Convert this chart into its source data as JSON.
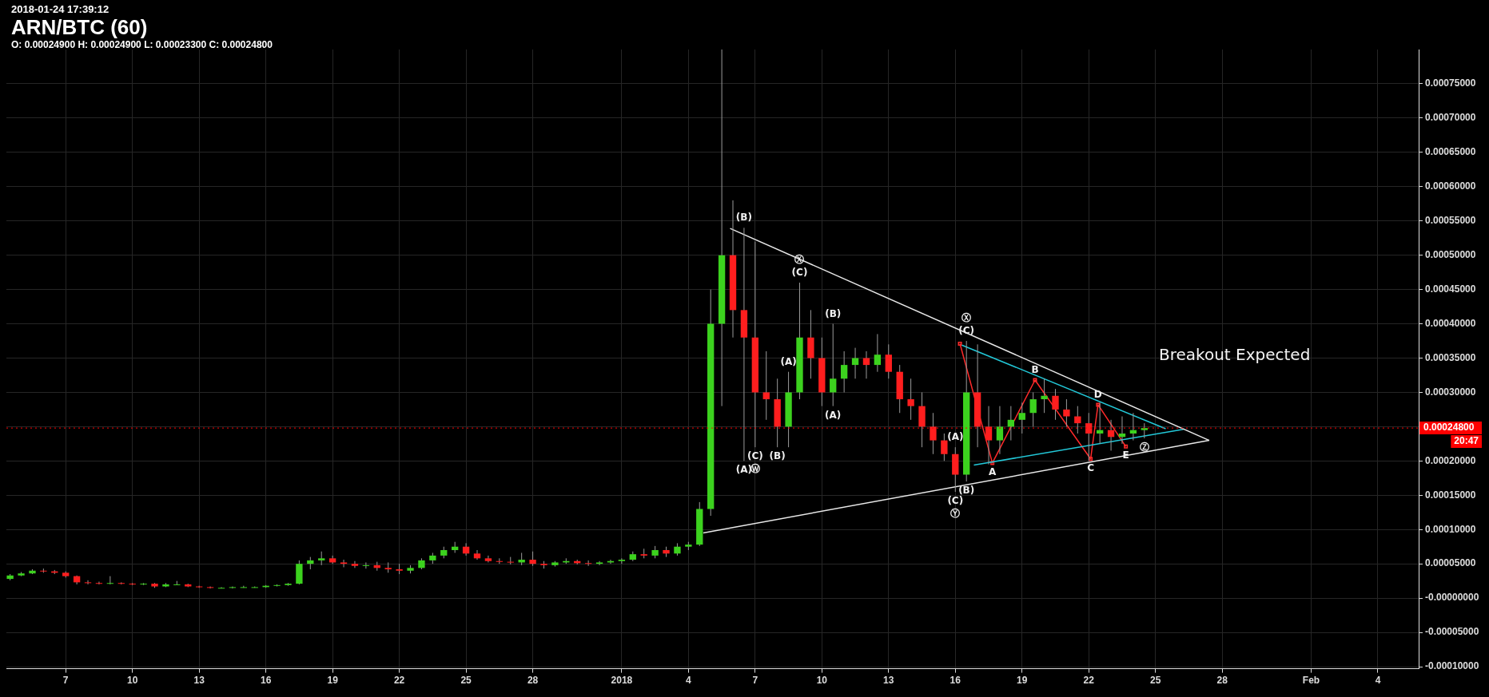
{
  "chart_data": {
    "type": "candlestick",
    "title": "ARN/BTC (60)",
    "subtitle": "2018-01-24 17:39:12",
    "x": [
      "2017-12-04T12:00",
      "2017-12-05T00:00",
      "2017-12-05T12:00",
      "2017-12-06T00:00",
      "2017-12-06T12:00",
      "2017-12-07T00:00",
      "2017-12-07T12:00",
      "2017-12-08T00:00",
      "2017-12-08T12:00",
      "2017-12-09T00:00",
      "2017-12-09T12:00",
      "2017-12-10T00:00",
      "2017-12-10T12:00",
      "2017-12-11T00:00",
      "2017-12-11T12:00",
      "2017-12-12T00:00",
      "2017-12-12T12:00",
      "2017-12-13T00:00",
      "2017-12-13T12:00",
      "2017-12-14T00:00",
      "2017-12-14T12:00",
      "2017-12-15T00:00",
      "2017-12-15T12:00",
      "2017-12-16T00:00",
      "2017-12-16T12:00",
      "2017-12-17T00:00",
      "2017-12-17T12:00",
      "2017-12-18T00:00",
      "2017-12-18T12:00",
      "2017-12-19T00:00",
      "2017-12-19T12:00",
      "2017-12-20T00:00",
      "2017-12-20T12:00",
      "2017-12-21T00:00",
      "2017-12-21T12:00",
      "2017-12-22T00:00",
      "2017-12-22T12:00",
      "2017-12-23T00:00",
      "2017-12-23T12:00",
      "2017-12-24T00:00",
      "2017-12-24T12:00",
      "2017-12-25T00:00",
      "2017-12-25T12:00",
      "2017-12-26T00:00",
      "2017-12-26T12:00",
      "2017-12-27T00:00",
      "2017-12-27T12:00",
      "2017-12-28T00:00",
      "2017-12-28T12:00",
      "2017-12-29T00:00",
      "2017-12-29T12:00",
      "2017-12-30T00:00",
      "2017-12-30T12:00",
      "2017-12-31T00:00",
      "2017-12-31T12:00",
      "2018-01-01T00:00",
      "2018-01-01T12:00",
      "2018-01-02T00:00",
      "2018-01-02T12:00",
      "2018-01-03T00:00",
      "2018-01-03T12:00",
      "2018-01-04T00:00",
      "2018-01-04T12:00",
      "2018-01-05T00:00",
      "2018-01-05T12:00",
      "2018-01-06T00:00",
      "2018-01-06T12:00",
      "2018-01-07T00:00",
      "2018-01-07T12:00",
      "2018-01-08T00:00",
      "2018-01-08T12:00",
      "2018-01-09T00:00",
      "2018-01-09T12:00",
      "2018-01-10T00:00",
      "2018-01-10T12:00",
      "2018-01-11T00:00",
      "2018-01-11T12:00",
      "2018-01-12T00:00",
      "2018-01-12T12:00",
      "2018-01-13T00:00",
      "2018-01-13T12:00",
      "2018-01-14T00:00",
      "2018-01-14T12:00",
      "2018-01-15T00:00",
      "2018-01-15T12:00",
      "2018-01-16T00:00",
      "2018-01-16T12:00",
      "2018-01-17T00:00",
      "2018-01-17T12:00",
      "2018-01-18T00:00",
      "2018-01-18T12:00",
      "2018-01-19T00:00",
      "2018-01-19T12:00",
      "2018-01-20T00:00",
      "2018-01-20T12:00",
      "2018-01-21T00:00",
      "2018-01-21T12:00",
      "2018-01-22T00:00",
      "2018-01-22T12:00",
      "2018-01-23T00:00",
      "2018-01-23T12:00",
      "2018-01-24T00:00",
      "2018-01-24T12:00"
    ],
    "ohlc": [
      [
        2.8e-05,
        3.5e-05,
        2.6e-05,
        3.3e-05
      ],
      [
        3.3e-05,
        3.8e-05,
        3.2e-05,
        3.6e-05
      ],
      [
        3.6e-05,
        4.2e-05,
        3.5e-05,
        4e-05
      ],
      [
        4e-05,
        4.3e-05,
        3.7e-05,
        3.9e-05
      ],
      [
        3.9e-05,
        4.1e-05,
        3.5e-05,
        3.7e-05
      ],
      [
        3.7e-05,
        3.9e-05,
        3e-05,
        3.2e-05
      ],
      [
        3.2e-05,
        3.3e-05,
        2e-05,
        2.3e-05
      ],
      [
        2.3e-05,
        2.6e-05,
        2e-05,
        2.2e-05
      ],
      [
        2.2e-05,
        2.4e-05,
        2e-05,
        2.1e-05
      ],
      [
        2.1e-05,
        3.2e-05,
        2e-05,
        2.2e-05
      ],
      [
        2.2e-05,
        2.3e-05,
        2e-05,
        2.1e-05
      ],
      [
        2.1e-05,
        2.2e-05,
        1.9e-05,
        2e-05
      ],
      [
        2e-05,
        2.2e-05,
        1.9e-05,
        2.1e-05
      ],
      [
        2.1e-05,
        2.2e-05,
        1.5e-05,
        1.7e-05
      ],
      [
        1.7e-05,
        2.2e-05,
        1.6e-05,
        2e-05
      ],
      [
        2e-05,
        2.5e-05,
        1.9e-05,
        2e-05
      ],
      [
        2e-05,
        2.1e-05,
        1.6e-05,
        1.7e-05
      ],
      [
        1.7e-05,
        1.8e-05,
        1.5e-05,
        1.6e-05
      ],
      [
        1.6e-05,
        1.7e-05,
        1.4e-05,
        1.5e-05
      ],
      [
        1.5e-05,
        1.6e-05,
        1.4e-05,
        1.5e-05
      ],
      [
        1.5e-05,
        1.7e-05,
        1.4e-05,
        1.6e-05
      ],
      [
        1.6e-05,
        1.8e-05,
        1.5e-05,
        1.6e-05
      ],
      [
        1.6e-05,
        1.7e-05,
        1.5e-05,
        1.6e-05
      ],
      [
        1.6e-05,
        1.9e-05,
        1.5e-05,
        1.8e-05
      ],
      [
        1.8e-05,
        2e-05,
        1.7e-05,
        1.9e-05
      ],
      [
        1.9e-05,
        2.2e-05,
        1.8e-05,
        2.1e-05
      ],
      [
        2.1e-05,
        5.5e-05,
        2e-05,
        5e-05
      ],
      [
        5e-05,
        6e-05,
        4.2e-05,
        5.5e-05
      ],
      [
        5.5e-05,
        6.8e-05,
        4.8e-05,
        5.8e-05
      ],
      [
        5.8e-05,
        6.2e-05,
        5e-05,
        5.2e-05
      ],
      [
        5.2e-05,
        5.6e-05,
        4.5e-05,
        5e-05
      ],
      [
        5e-05,
        5.4e-05,
        4.4e-05,
        4.7e-05
      ],
      [
        4.7e-05,
        5.2e-05,
        4.3e-05,
        4.8e-05
      ],
      [
        4.8e-05,
        5.3e-05,
        4e-05,
        4.4e-05
      ],
      [
        4.4e-05,
        5.2e-05,
        3.7e-05,
        4.2e-05
      ],
      [
        4.2e-05,
        5e-05,
        3.5e-05,
        4e-05
      ],
      [
        4e-05,
        4.8e-05,
        3.6e-05,
        4.4e-05
      ],
      [
        4.4e-05,
        5.8e-05,
        4.2e-05,
        5.5e-05
      ],
      [
        5.5e-05,
        6.6e-05,
        5e-05,
        6.2e-05
      ],
      [
        6.2e-05,
        7.5e-05,
        5.8e-05,
        7e-05
      ],
      [
        7e-05,
        8.2e-05,
        6.6e-05,
        7.5e-05
      ],
      [
        7.5e-05,
        8e-05,
        6.2e-05,
        6.5e-05
      ],
      [
        6.5e-05,
        7e-05,
        5.6e-05,
        5.8e-05
      ],
      [
        5.8e-05,
        6.2e-05,
        5.2e-05,
        5.4e-05
      ],
      [
        5.4e-05,
        5.8e-05,
        5e-05,
        5.3e-05
      ],
      [
        5.3e-05,
        6e-05,
        4.9e-05,
        5.2e-05
      ],
      [
        5.2e-05,
        6.6e-05,
        4.8e-05,
        5.6e-05
      ],
      [
        5.6e-05,
        6.8e-05,
        4.7e-05,
        5e-05
      ],
      [
        5e-05,
        5.4e-05,
        4.3e-05,
        4.8e-05
      ],
      [
        4.8e-05,
        5.4e-05,
        4.6e-05,
        5.2e-05
      ],
      [
        5.2e-05,
        5.8e-05,
        5e-05,
        5.4e-05
      ],
      [
        5.4e-05,
        5.6e-05,
        4.9e-05,
        5.1e-05
      ],
      [
        5.1e-05,
        5.5e-05,
        4.7e-05,
        5e-05
      ],
      [
        5e-05,
        5.4e-05,
        4.8e-05,
        5.2e-05
      ],
      [
        5.2e-05,
        5.6e-05,
        5e-05,
        5.4e-05
      ],
      [
        5.4e-05,
        5.8e-05,
        5e-05,
        5.6e-05
      ],
      [
        5.6e-05,
        6.8e-05,
        5.4e-05,
        6.4e-05
      ],
      [
        6.4e-05,
        7.2e-05,
        5.8e-05,
        6.2e-05
      ],
      [
        6.2e-05,
        7.6e-05,
        5.8e-05,
        7e-05
      ],
      [
        7e-05,
        7.5e-05,
        6e-05,
        6.5e-05
      ],
      [
        6.5e-05,
        8e-05,
        6.2e-05,
        7.5e-05
      ],
      [
        7.5e-05,
        8.2e-05,
        7e-05,
        7.8e-05
      ],
      [
        7.8e-05,
        0.00014,
        7.6e-05,
        0.00013
      ],
      [
        0.00013,
        0.00045,
        0.00012,
        0.0004
      ],
      [
        0.0004,
        0.0008,
        0.00028,
        0.0005
      ],
      [
        0.0005,
        0.00058,
        0.00038,
        0.00042
      ],
      [
        0.00042,
        0.00054,
        0.0002,
        0.00038
      ],
      [
        0.00038,
        0.00052,
        0.00022,
        0.0003
      ],
      [
        0.0003,
        0.00036,
        0.00026,
        0.00029
      ],
      [
        0.00029,
        0.00032,
        0.00022,
        0.00025
      ],
      [
        0.00025,
        0.00033,
        0.00022,
        0.0003
      ],
      [
        0.0003,
        0.00046,
        0.00029,
        0.00038
      ],
      [
        0.00038,
        0.00042,
        0.00032,
        0.00035
      ],
      [
        0.00035,
        0.00038,
        0.00028,
        0.0003
      ],
      [
        0.0003,
        0.0004,
        0.00028,
        0.00032
      ],
      [
        0.00032,
        0.00036,
        0.0003,
        0.00034
      ],
      [
        0.00034,
        0.000365,
        0.00032,
        0.00035
      ],
      [
        0.00035,
        0.00036,
        0.00032,
        0.00034
      ],
      [
        0.00034,
        0.000385,
        0.00033,
        0.000355
      ],
      [
        0.000355,
        0.00037,
        0.00032,
        0.00033
      ],
      [
        0.00033,
        0.00034,
        0.00027,
        0.00029
      ],
      [
        0.00029,
        0.00032,
        0.00026,
        0.00028
      ],
      [
        0.00028,
        0.0003,
        0.00022,
        0.00025
      ],
      [
        0.00025,
        0.00027,
        0.00021,
        0.00023
      ],
      [
        0.00023,
        0.00024,
        0.0002,
        0.00021
      ],
      [
        0.00021,
        0.00022,
        0.000155,
        0.00018
      ],
      [
        0.00018,
        0.000375,
        0.00017,
        0.0003
      ],
      [
        0.0003,
        0.00037,
        0.00022,
        0.00025
      ],
      [
        0.00025,
        0.00028,
        0.000195,
        0.00023
      ],
      [
        0.00023,
        0.00028,
        0.00021,
        0.00025
      ],
      [
        0.00025,
        0.00028,
        0.00023,
        0.00026
      ],
      [
        0.00026,
        0.000285,
        0.00024,
        0.00027
      ],
      [
        0.00027,
        0.0003,
        0.00025,
        0.00029
      ],
      [
        0.00029,
        0.00032,
        0.00027,
        0.000295
      ],
      [
        0.000295,
        0.000305,
        0.00026,
        0.000275
      ],
      [
        0.000275,
        0.00029,
        0.00025,
        0.000265
      ],
      [
        0.000265,
        0.00028,
        0.00024,
        0.000255
      ],
      [
        0.000255,
        0.00027,
        0.0002,
        0.00024
      ],
      [
        0.00024,
        0.000285,
        0.000225,
        0.000245
      ],
      [
        0.000245,
        0.00026,
        0.000215,
        0.000235
      ],
      [
        0.000235,
        0.000265,
        0.000225,
        0.00024
      ],
      [
        0.00024,
        0.00027,
        0.00023,
        0.000245
      ],
      [
        0.000245,
        0.000255,
        0.000233,
        0.000248
      ]
    ],
    "series": [
      {
        "type": "line",
        "color": "#e8e8e8",
        "x": [
          "2018-01-05T21:00",
          "2018-01-27T10:00"
        ],
        "values": [
          0.000539,
          0.00023
        ]
      },
      {
        "type": "line",
        "color": "#e8e8e8",
        "x": [
          "2018-01-04T16:00",
          "2018-01-27T10:00"
        ],
        "values": [
          9.5e-05,
          0.00023
        ]
      },
      {
        "type": "line",
        "color": "#22c8d8",
        "x": [
          "2018-01-16T07:00",
          "2018-01-25T11:00"
        ],
        "values": [
          0.000369,
          0.000247
        ]
      },
      {
        "type": "line",
        "color": "#22c8d8",
        "x": [
          "2018-01-16T20:00",
          "2018-01-26T06:00"
        ],
        "values": [
          0.000194,
          0.000246
        ]
      },
      {
        "type": "line",
        "color": "#ff2a2a",
        "marker": "square",
        "x": [
          "2018-01-16T05:00",
          "2018-01-17T16:00",
          "2018-01-19T14:00",
          "2018-01-22T02:00",
          "2018-01-22T10:00",
          "2018-01-23T16:00"
        ],
        "values": [
          0.000371,
          0.000197,
          0.000318,
          0.000203,
          0.000282,
          0.000221
        ]
      }
    ],
    "xlim": [
      "2017-12-04T08:00",
      "2018-02-05T20:00"
    ],
    "xticks": [
      {
        "value": "2017-12-07",
        "label": "7"
      },
      {
        "value": "2017-12-10",
        "label": "10"
      },
      {
        "value": "2017-12-13",
        "label": "13"
      },
      {
        "value": "2017-12-16",
        "label": "16"
      },
      {
        "value": "2017-12-19",
        "label": "19"
      },
      {
        "value": "2017-12-22",
        "label": "22"
      },
      {
        "value": "2017-12-25",
        "label": "25"
      },
      {
        "value": "2017-12-28",
        "label": "28"
      },
      {
        "value": "2018-01-01",
        "label": "2018"
      },
      {
        "value": "2018-01-04",
        "label": "4"
      },
      {
        "value": "2018-01-07",
        "label": "7"
      },
      {
        "value": "2018-01-10",
        "label": "10"
      },
      {
        "value": "2018-01-13",
        "label": "13"
      },
      {
        "value": "2018-01-16",
        "label": "16"
      },
      {
        "value": "2018-01-19",
        "label": "19"
      },
      {
        "value": "2018-01-22",
        "label": "22"
      },
      {
        "value": "2018-01-25",
        "label": "25"
      },
      {
        "value": "2018-01-28",
        "label": "28"
      },
      {
        "value": "2018-02-01",
        "label": "Feb"
      },
      {
        "value": "2018-02-04",
        "label": "4"
      }
    ],
    "ylim": [
      -0.000103,
      0.0008
    ],
    "yticks": [
      {
        "value": -0.0001,
        "label": "-0.00010000"
      },
      {
        "value": -5e-05,
        "label": "-0.00005000"
      },
      {
        "value": 0,
        "label": "-0.00000000"
      },
      {
        "value": 5e-05,
        "label": "0.00005000"
      },
      {
        "value": 0.0001,
        "label": "0.00010000"
      },
      {
        "value": 0.00015,
        "label": "0.00015000"
      },
      {
        "value": 0.0002,
        "label": "0.00020000"
      },
      {
        "value": 0.00025,
        "label": null
      },
      {
        "value": 0.0003,
        "label": "0.00030000"
      },
      {
        "value": 0.00035,
        "label": "0.00035000"
      },
      {
        "value": 0.0004,
        "label": "0.00040000"
      },
      {
        "value": 0.00045,
        "label": "0.00045000"
      },
      {
        "value": 0.0005,
        "label": "0.00050000"
      },
      {
        "value": 0.00055,
        "label": "0.00055000"
      },
      {
        "value": 0.0006,
        "label": "0.00060000"
      },
      {
        "value": 0.00065,
        "label": "0.00065000"
      },
      {
        "value": 0.0007,
        "label": "0.00070000"
      },
      {
        "value": 0.00075,
        "label": "0.00075000"
      }
    ],
    "ref_lines": [
      {
        "axis": "y",
        "value": 0.000248,
        "label": "0.00024800",
        "color": "#ff0000"
      }
    ],
    "annotations": [
      "O: 0.00024900 H: 0.00024900 L: 0.00023300 C: 0.00024800",
      "20:47",
      {
        "text": "(B)",
        "x": "2018-01-06T12:00",
        "y": 0.00054
      },
      {
        "text": "(C)",
        "x": "2018-01-09T00:00",
        "y": 0.00046
      },
      {
        "text": "Ⓧ",
        "x": "2018-01-09T00:00",
        "y": 0.00046
      },
      {
        "text": "(B)",
        "x": "2018-01-10T12:00",
        "y": 0.0004
      },
      {
        "text": "(A)",
        "x": "2018-01-08T12:00",
        "y": 0.00033
      },
      {
        "text": "(B)",
        "x": "2018-01-08T00:00",
        "y": 0.00022
      },
      {
        "text": "(A)",
        "x": "2018-01-06T12:00",
        "y": 0.0002
      },
      {
        "text": "(C)",
        "x": "2018-01-07T00:00",
        "y": 0.00022
      },
      {
        "text": "Ⓦ",
        "x": "2018-01-07T00:00",
        "y": 0.00022
      },
      {
        "text": "(A)",
        "x": "2018-01-10T12:00",
        "y": 0.00028
      },
      {
        "text": "(C)",
        "x": "2018-01-16T12:00",
        "y": 0.000375
      },
      {
        "text": "Ⓧ",
        "x": "2018-01-16T12:00",
        "y": 0.000375
      },
      {
        "text": "(A)",
        "x": "2018-01-16T00:00",
        "y": 0.00022
      },
      {
        "text": "(B)",
        "x": "2018-01-16T12:00",
        "y": 0.00017
      },
      {
        "text": "(C)",
        "x": "2018-01-16T00:00",
        "y": 0.000155
      },
      {
        "text": "Ⓨ",
        "x": "2018-01-16T00:00",
        "y": 0.000155
      },
      {
        "text": "A",
        "x": "2018-01-17T16:00",
        "y": 0.000197
      },
      {
        "text": "B",
        "x": "2018-01-19T14:00",
        "y": 0.000318
      },
      {
        "text": "C",
        "x": "2018-01-22T02:00",
        "y": 0.000203
      },
      {
        "text": "D",
        "x": "2018-01-22T10:00",
        "y": 0.000282
      },
      {
        "text": "E",
        "x": "2018-01-23T16:00",
        "y": 0.000221
      },
      {
        "text": "Ⓩ",
        "x": "2018-01-24T12:00",
        "y": 0.000233
      },
      "Breakout Expected"
    ],
    "grid": true,
    "legend": false,
    "marker": "none",
    "line_style": "solid"
  }
}
